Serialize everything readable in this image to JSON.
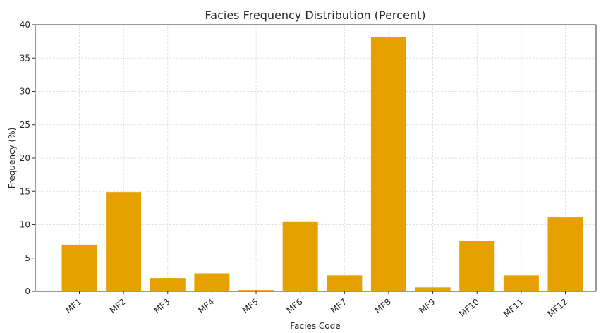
{
  "chart_data": {
    "type": "bar",
    "title": "Facies Frequency Distribution (Percent)",
    "xlabel": "Facies Code",
    "ylabel": "Frequency (%)",
    "categories": [
      "MF1",
      "MF2",
      "MF3",
      "MF4",
      "MF5",
      "MF6",
      "MF7",
      "MF8",
      "MF9",
      "MF10",
      "MF11",
      "MF12"
    ],
    "values": [
      7.0,
      14.9,
      2.0,
      2.7,
      0.2,
      10.5,
      2.4,
      38.1,
      0.6,
      7.6,
      2.4,
      11.1
    ],
    "ylim": [
      0,
      40
    ],
    "yticks": [
      "0",
      "5",
      "10",
      "15",
      "20",
      "25",
      "30",
      "35",
      "40"
    ],
    "grid": true,
    "bar_color": "#E6A000",
    "legend": "none"
  }
}
